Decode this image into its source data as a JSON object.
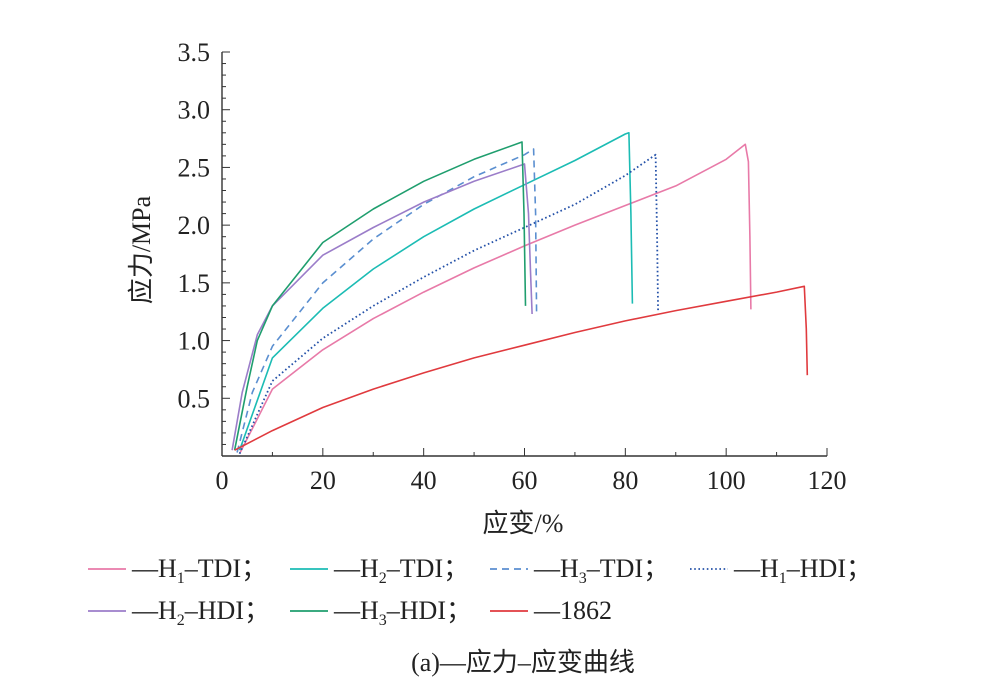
{
  "chart_data": {
    "type": "line",
    "title": "",
    "caption": "(a)—应力–应变曲线",
    "xlabel": "应变/%",
    "ylabel": "应力/MPa",
    "xlim": [
      0,
      120
    ],
    "ylim": [
      0,
      3.5
    ],
    "xticks": [
      0,
      20,
      40,
      60,
      80,
      100,
      120
    ],
    "yticks": [
      0.5,
      1.0,
      1.5,
      2.0,
      2.5,
      3.0,
      3.5
    ],
    "xtick_labels": [
      "0",
      "20",
      "40",
      "60",
      "80",
      "100",
      "120"
    ],
    "ytick_labels": [
      "0.5",
      "1.0",
      "1.5",
      "2.0",
      "2.5",
      "3.0",
      "3.5"
    ],
    "grid": false,
    "legend_placement": "bottom",
    "series": [
      {
        "name": "H1–TDI",
        "label": {
          "prefix": "—H",
          "sub": "1",
          "suffix": "–TDI；"
        },
        "color": "#e87aa8",
        "dash": "solid",
        "x": [
          3.5,
          10,
          20,
          30,
          40,
          50,
          60,
          70,
          80,
          90,
          100,
          103.8,
          104.4,
          104.7,
          104.9
        ],
        "y": [
          0.02,
          0.58,
          0.92,
          1.19,
          1.42,
          1.63,
          1.82,
          2.0,
          2.17,
          2.34,
          2.57,
          2.7,
          2.55,
          1.9,
          1.27
        ]
      },
      {
        "name": "H2–TDI",
        "label": {
          "prefix": "—H",
          "sub": "2",
          "suffix": "–TDI；"
        },
        "color": "#1cbcb4",
        "dash": "solid",
        "x": [
          3.5,
          10,
          20,
          30,
          40,
          50,
          60,
          70,
          80,
          80.7,
          81.1,
          81.4
        ],
        "y": [
          0.05,
          0.85,
          1.28,
          1.62,
          1.9,
          2.14,
          2.35,
          2.56,
          2.79,
          2.8,
          2.1,
          1.32
        ]
      },
      {
        "name": "H3–TDI",
        "label": {
          "prefix": "—H",
          "sub": "3",
          "suffix": "–TDI；"
        },
        "color": "#5b8fd0",
        "dash": "dashed",
        "x": [
          3,
          6,
          10,
          20,
          30,
          40,
          50,
          60,
          61.8,
          62.2,
          62.4
        ],
        "y": [
          0.03,
          0.55,
          0.95,
          1.5,
          1.88,
          2.18,
          2.42,
          2.61,
          2.66,
          2.1,
          1.22
        ]
      },
      {
        "name": "H1–HDI",
        "label": {
          "prefix": "—H",
          "sub": "1",
          "suffix": "–HDI；"
        },
        "color": "#2451a8",
        "dash": "dotted",
        "x": [
          3.5,
          10,
          20,
          30,
          40,
          50,
          60,
          70,
          80,
          86,
          86.3,
          86.5
        ],
        "y": [
          0.02,
          0.65,
          1.02,
          1.3,
          1.55,
          1.78,
          1.98,
          2.18,
          2.43,
          2.61,
          1.9,
          1.25
        ]
      },
      {
        "name": "H2–HDI",
        "label": {
          "prefix": "—H",
          "sub": "2",
          "suffix": "–HDI；"
        },
        "color": "#9b7dc9",
        "dash": "solid",
        "x": [
          2,
          4,
          7,
          10,
          20,
          30,
          40,
          50,
          60,
          60.8,
          61.2,
          61.5
        ],
        "y": [
          0.05,
          0.55,
          1.05,
          1.3,
          1.74,
          1.98,
          2.2,
          2.38,
          2.53,
          2.1,
          1.6,
          1.23
        ]
      },
      {
        "name": "H3–HDI",
        "label": {
          "prefix": "—H",
          "sub": "3",
          "suffix": "–HDI；"
        },
        "color": "#1f9e6e",
        "dash": "solid",
        "x": [
          2.5,
          5,
          7,
          10,
          20,
          30,
          40,
          50,
          59.5,
          59.9,
          60.2
        ],
        "y": [
          0.05,
          0.6,
          1.0,
          1.3,
          1.85,
          2.14,
          2.38,
          2.57,
          2.72,
          2.1,
          1.3
        ]
      },
      {
        "name": "1862",
        "label": {
          "prefix": "—1862",
          "sub": "",
          "suffix": ""
        },
        "color": "#e03a3e",
        "dash": "solid",
        "x": [
          2.5,
          10,
          20,
          30,
          40,
          50,
          60,
          70,
          80,
          90,
          100,
          110,
          115.5,
          115.9,
          116.1
        ],
        "y": [
          0.05,
          0.22,
          0.42,
          0.58,
          0.72,
          0.85,
          0.96,
          1.07,
          1.17,
          1.26,
          1.34,
          1.42,
          1.47,
          1.1,
          0.7
        ]
      }
    ]
  }
}
